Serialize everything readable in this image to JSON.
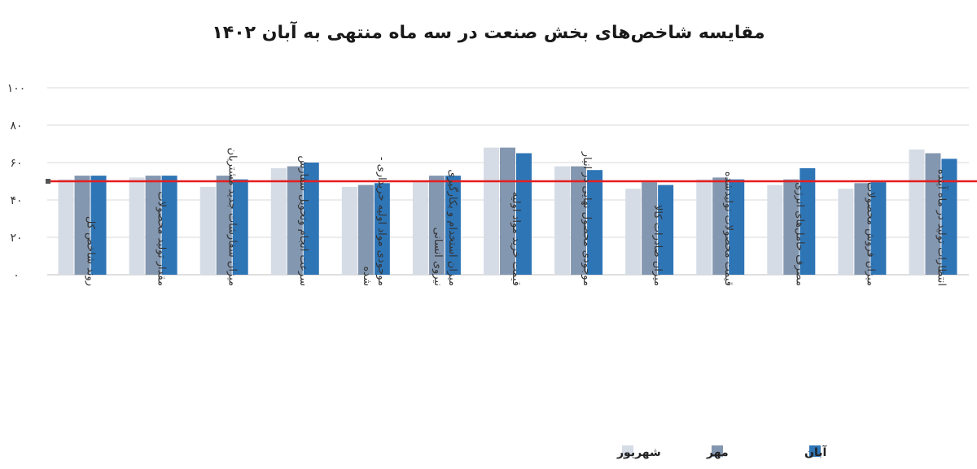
{
  "chart_data": {
    "type": "bar",
    "title": "مقایسه شاخص‌های بخش صنعت در سه ماه منتهی به آبان ۱۴۰۲",
    "xlabel": "",
    "ylabel": "",
    "ylim": [
      0,
      100
    ],
    "yticks": [
      0,
      20,
      40,
      60,
      80,
      100
    ],
    "ytick_labels": [
      "۰",
      "۲۰",
      "۴۰",
      "۶۰",
      "۸۰",
      "۱۰۰"
    ],
    "grid": true,
    "legend_position": "bottom-right",
    "reference_line": 50,
    "categories": [
      "روند شاخص کل",
      "مقدار تولید محصولات",
      "میزان سفارشات جدید مشتریان",
      "سرعت انجام و تحویل سفارش",
      "موجودی مواد اولیه خریداری شده",
      "میزان استخدام و بکارگیری نیروی انسانی",
      "قیمت خرید مواد اولیه",
      "موجودی محصول نهایی در انبار",
      "میزان صادرات کالا",
      "قیمت محصولات تولیدشده",
      "مصرف حامل‌های انرژی",
      "میزان فروش محصولات",
      "انتظارات تولید در ماه آینده"
    ],
    "category_lines": [
      [
        "روند شاخص کل"
      ],
      [
        "مقدار تولید محصولات"
      ],
      [
        "میزان سفارشات جدید مشتریان"
      ],
      [
        "سرعت انجام وتحویل سفارش"
      ],
      [
        "موجودی مواد اولیه خریداری -",
        "شده"
      ],
      [
        "میزان استخدام و بکارگیری",
        "نیروی انسانی"
      ],
      [
        "قیمت خرید مواد اولیه"
      ],
      [
        "موجودی محصول نهایی در انبار"
      ],
      [
        "میزان صادرات کالا"
      ],
      [
        "قیمت محصولات تولیدشده"
      ],
      [
        "مصرف حامل‌های انرژی"
      ],
      [
        "میزان فروش محصولات"
      ],
      [
        "انتظارات تولید در ماه آینده"
      ]
    ],
    "series": [
      {
        "name": "شهریور",
        "color": "#d6dce6",
        "values": [
          51,
          52,
          47,
          57,
          47,
          50,
          68,
          58,
          46,
          51,
          48,
          46,
          67
        ]
      },
      {
        "name": "مهر",
        "color": "#8497b0",
        "values": [
          53,
          53,
          53,
          58,
          48,
          53,
          68,
          58,
          49.5,
          52,
          51,
          49,
          65
        ]
      },
      {
        "name": "آبان",
        "color": "#2e75b6",
        "values": [
          53,
          53,
          51,
          60,
          49,
          53,
          65,
          56,
          48,
          51,
          57,
          49.5,
          62
        ]
      }
    ],
    "colors": {
      "reference_line": "#e41e1e",
      "grid": "#d9d9d9",
      "axis": "#bfbfbf"
    }
  }
}
